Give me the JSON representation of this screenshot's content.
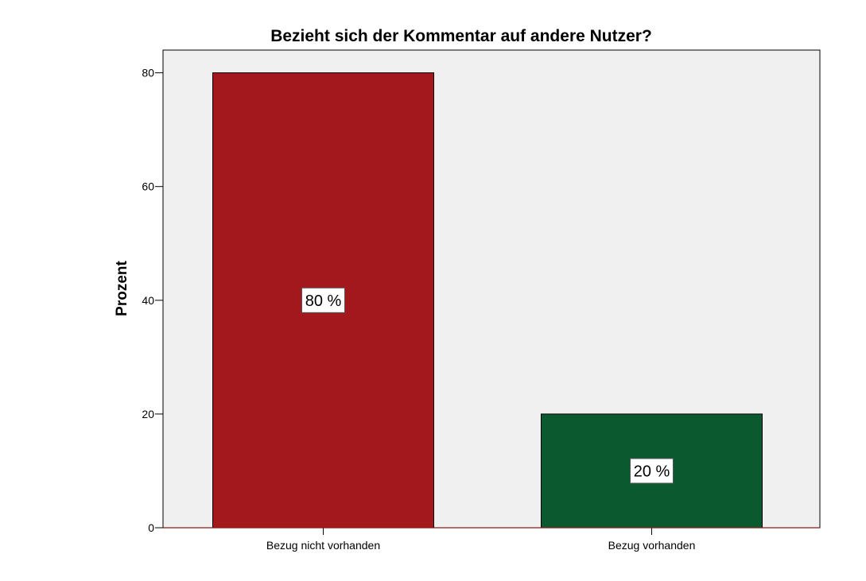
{
  "chart_data": {
    "type": "bar",
    "title": "Bezieht sich der Kommentar auf andere Nutzer?",
    "xlabel": "",
    "ylabel": "Prozent",
    "categories": [
      "Bezug nicht vorhanden",
      "Bezug vorhanden"
    ],
    "values": [
      80,
      20
    ],
    "data_labels": [
      "80 %",
      "20 %"
    ],
    "bar_colors": [
      "#a3181c",
      "#0b5a2f"
    ],
    "ylim": [
      0,
      84
    ],
    "yticks": [
      0,
      20,
      40,
      60,
      80
    ],
    "ytick_labels": [
      "0",
      "20",
      "40",
      "60",
      "80"
    ],
    "grid": false,
    "legend": "none",
    "plot_background": "#f0f0f0",
    "baseline_color": "#8b1a1a"
  }
}
